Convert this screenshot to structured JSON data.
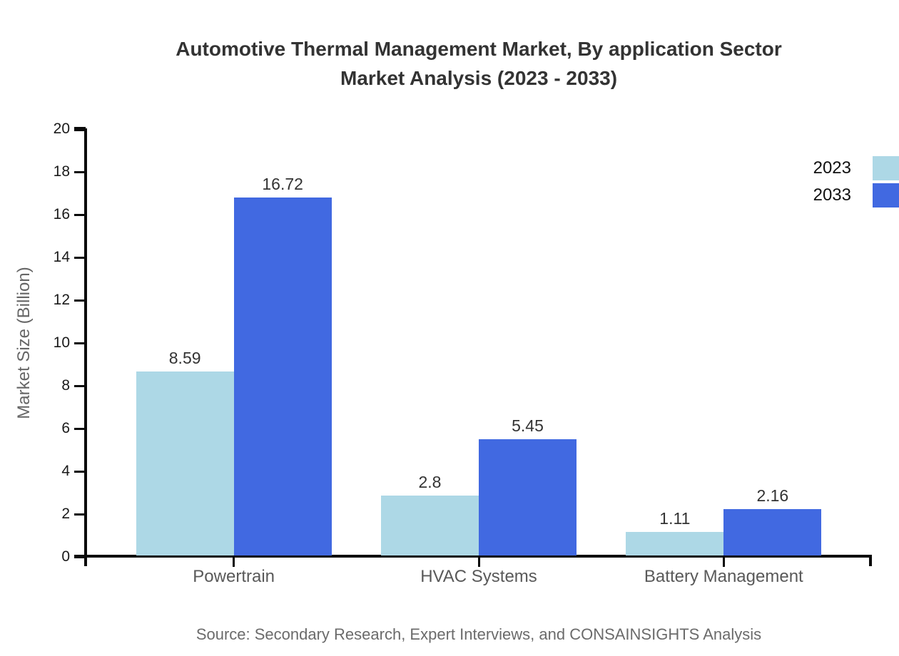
{
  "title": {
    "line1": "Automotive Thermal Management Market, By application Sector",
    "line2": "Market Analysis (2023 - 2033)"
  },
  "y_axis": {
    "label": "Market Size (Billion)",
    "tick_labels": [
      "0",
      "2",
      "4",
      "6",
      "8",
      "10",
      "12",
      "14",
      "16",
      "18",
      "20"
    ]
  },
  "source": "Source: Secondary Research, Expert Interviews, and CONSAINSIGHTS Analysis",
  "colors": {
    "series_2023": "#ADD8E6",
    "series_2033": "#4169E1",
    "axis": "#0a0a0a"
  },
  "chart_data": {
    "type": "bar",
    "title": "Automotive Thermal Management Market, By application Sector Market Analysis (2023 - 2033)",
    "categories": [
      "Powertrain",
      "HVAC Systems",
      "Battery Management"
    ],
    "series": [
      {
        "name": "2023",
        "color": "#ADD8E6",
        "values": [
          8.59,
          2.8,
          1.11
        ],
        "value_labels": [
          "8.59",
          "2.8",
          "1.11"
        ]
      },
      {
        "name": "2033",
        "color": "#4169E1",
        "values": [
          16.72,
          5.45,
          2.16
        ],
        "value_labels": [
          "16.72",
          "5.45",
          "2.16"
        ]
      }
    ],
    "xlabel": "",
    "ylabel": "Market Size (Billion)",
    "ylim": [
      0,
      20
    ],
    "ytick_step": 2,
    "grid": false,
    "legend_position": "top-right"
  }
}
